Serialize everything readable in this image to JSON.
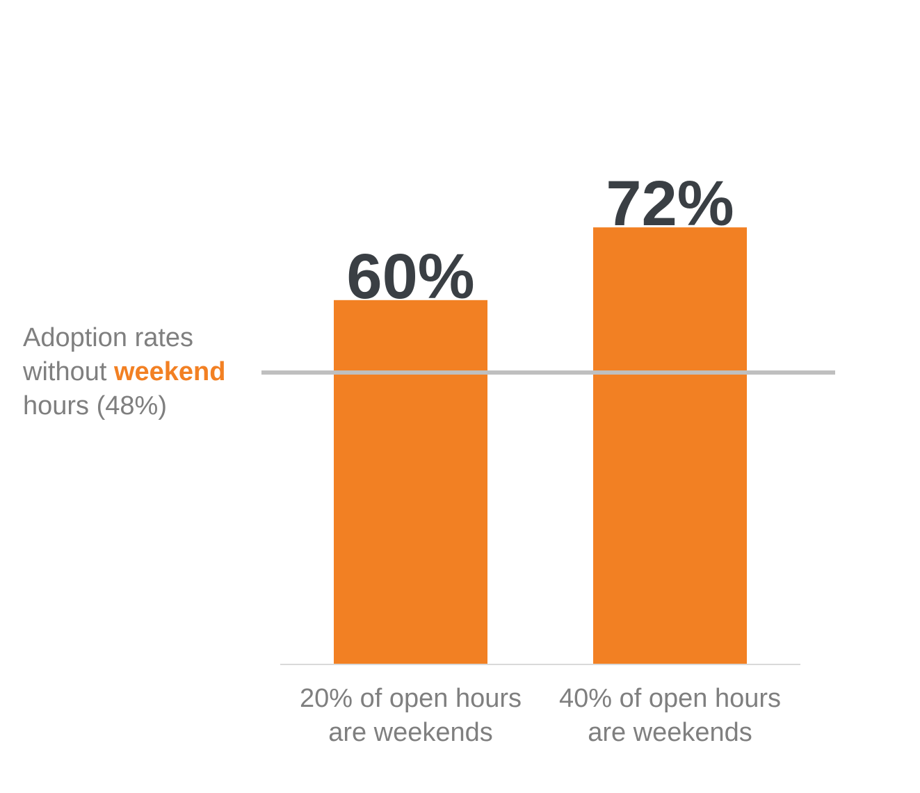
{
  "chart_data": {
    "type": "bar",
    "categories": [
      [
        "20% of open hours",
        "are weekends"
      ],
      [
        "40% of open hours",
        "are weekends"
      ]
    ],
    "values": [
      60,
      72
    ],
    "data_labels": [
      "60%",
      "72%"
    ],
    "ylim": [
      0,
      100
    ],
    "grid": false,
    "reference_line": {
      "value": 48,
      "label_pre": "Adoption rates",
      "label_line2_pre": "without ",
      "label_highlight": "weekend",
      "label_line3": "hours (48%)"
    },
    "colors": {
      "bar": "#f28023",
      "data_label": "#3a3f44",
      "category_label": "#7f7f7f",
      "reference_line": "#bfbfbf",
      "axis": "#d9d9d9"
    }
  }
}
